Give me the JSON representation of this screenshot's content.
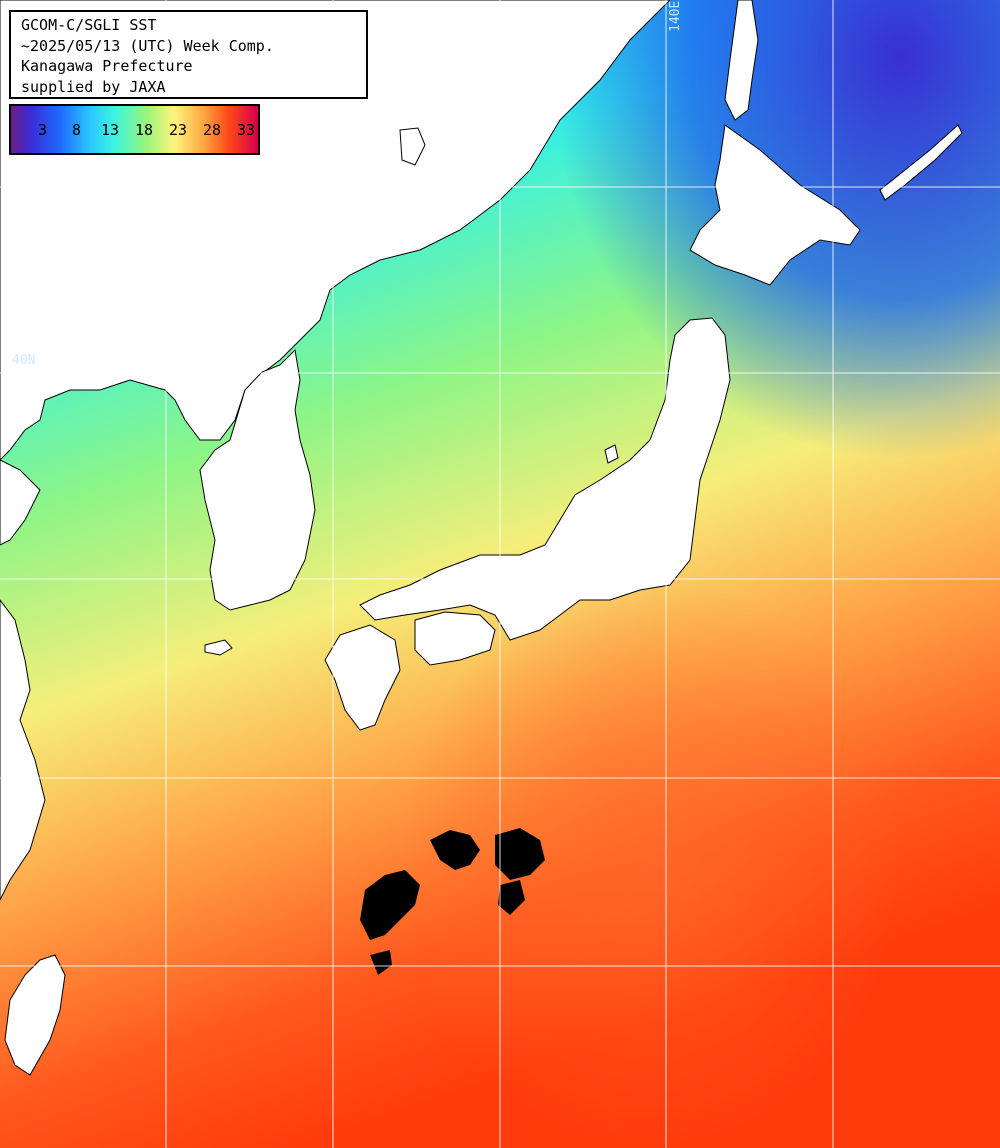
{
  "title": {
    "lines": [
      "GCOM-C/SGLI SST",
      "~2025/05/13 (UTC) Week Comp.",
      "Kanagawa Prefecture",
      "supplied by JAXA"
    ]
  },
  "colorbar": {
    "ticks": [
      "3",
      "8",
      "13",
      "18",
      "23",
      "28",
      "33"
    ]
  },
  "grid_labels": {
    "lon": "140E",
    "lat": "40N"
  },
  "colors": {
    "land": "#ffffff",
    "cloud": "#000000",
    "grid": "#ffffff"
  },
  "icons": [
    "colorbar-icon"
  ]
}
